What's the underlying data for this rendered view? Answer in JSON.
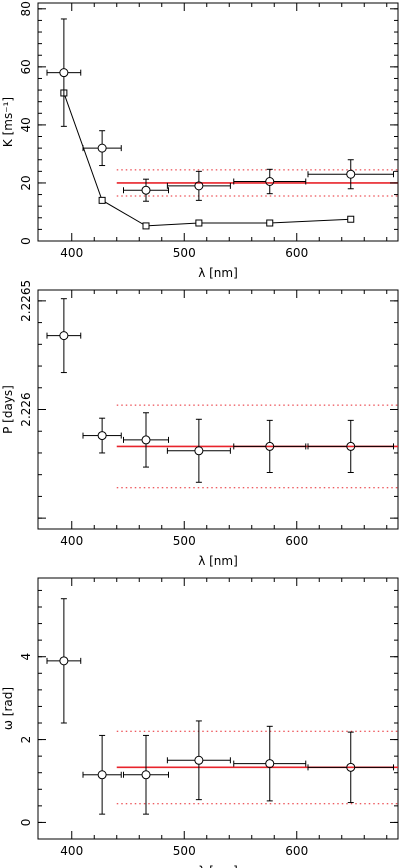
{
  "chart_data": [
    {
      "type": "scatter",
      "ylabel": "K [ms⁻¹]",
      "xlabel": "λ [nm]",
      "xlim": [
        370,
        690
      ],
      "ylim": [
        0,
        82
      ],
      "xticks": [
        400,
        500,
        600
      ],
      "yticks": [
        0,
        20,
        40,
        60,
        80
      ],
      "points": [
        {
          "x": 393,
          "y": 58,
          "xerr": 15,
          "yerr": 18.5
        },
        {
          "x": 427,
          "y": 32,
          "xerr": 17,
          "yerr": 6
        },
        {
          "x": 466,
          "y": 17.5,
          "xerr": 20,
          "yerr": 3.8
        },
        {
          "x": 513,
          "y": 19,
          "xerr": 28,
          "yerr": 5
        },
        {
          "x": 576,
          "y": 20.5,
          "xerr": 32,
          "yerr": 4.2
        },
        {
          "x": 648,
          "y": 23,
          "xerr": 38,
          "yerr": 5
        }
      ],
      "model": {
        "x": [
          393,
          427,
          466,
          513,
          576,
          648
        ],
        "y": [
          51,
          14,
          5.2,
          6.2,
          6.2,
          7.5
        ]
      },
      "mean": {
        "value": 20,
        "band": [
          15.5,
          24.5
        ],
        "xrange": [
          440,
          690
        ]
      }
    },
    {
      "type": "scatter",
      "ylabel": "P [days]",
      "xlabel": "λ [nm]",
      "xlim": [
        370,
        690
      ],
      "ylim": [
        2.22545,
        2.22655
      ],
      "xticks": [
        400,
        500,
        600
      ],
      "yticks": [
        2.2255,
        2.226,
        2.2265
      ],
      "ytick_labels": [
        "",
        "2.226",
        "2.2265"
      ],
      "points": [
        {
          "x": 393,
          "y": 2.22634,
          "xerr": 15,
          "yerr": 0.00017
        },
        {
          "x": 427,
          "y": 2.22588,
          "xerr": 17,
          "yerr": 8e-05
        },
        {
          "x": 466,
          "y": 2.22586,
          "xerr": 20,
          "yerr": 0.000125
        },
        {
          "x": 513,
          "y": 2.22581,
          "xerr": 28,
          "yerr": 0.000145
        },
        {
          "x": 576,
          "y": 2.22583,
          "xerr": 32,
          "yerr": 0.00012
        },
        {
          "x": 648,
          "y": 2.22583,
          "xerr": 38,
          "yerr": 0.00012
        }
      ],
      "mean": {
        "value": 2.22583,
        "band": [
          2.22564,
          2.22602
        ],
        "xrange": [
          440,
          690
        ]
      }
    },
    {
      "type": "scatter",
      "ylabel": "ω [rad]",
      "xlabel": "λ [nm]",
      "xlim": [
        370,
        690
      ],
      "ylim": [
        -0.4,
        5.9
      ],
      "xticks": [
        400,
        500,
        600
      ],
      "yticks": [
        0,
        2,
        4
      ],
      "points": [
        {
          "x": 393,
          "y": 3.9,
          "xerr": 15,
          "yerr": 1.5
        },
        {
          "x": 427,
          "y": 1.15,
          "xerr": 17,
          "yerr": 0.95
        },
        {
          "x": 466,
          "y": 1.15,
          "xerr": 20,
          "yerr": 0.95
        },
        {
          "x": 513,
          "y": 1.5,
          "xerr": 28,
          "yerr": 0.95
        },
        {
          "x": 576,
          "y": 1.42,
          "xerr": 32,
          "yerr": 0.9
        },
        {
          "x": 648,
          "y": 1.33,
          "xerr": 38,
          "yerr": 0.85
        }
      ],
      "mean": {
        "value": 1.33,
        "band": [
          0.45,
          2.2
        ],
        "xrange": [
          440,
          690
        ]
      }
    }
  ]
}
